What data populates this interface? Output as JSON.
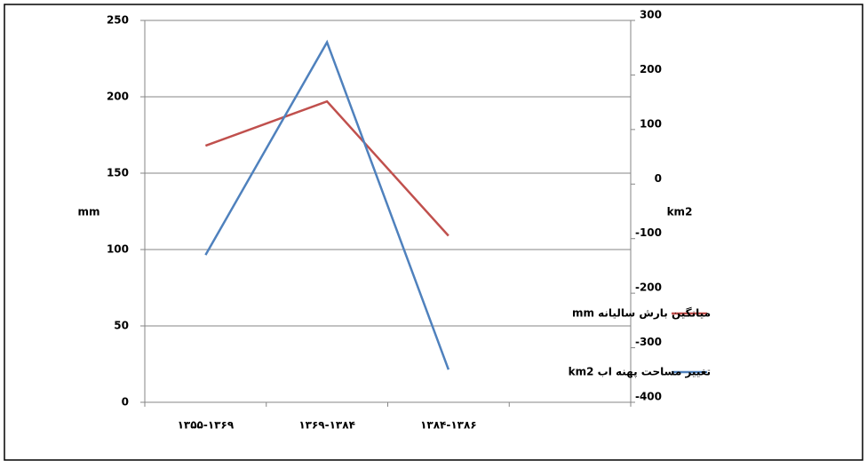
{
  "chart_data": {
    "type": "line",
    "categories": [
      "۱۳۵۵-۱۳۶۹",
      "۱۳۶۹-۱۳۸۴",
      "۱۳۸۴-۱۳۸۶",
      null
    ],
    "series": [
      {
        "name": "میانگین بارش سالیانه mm",
        "color": "#c0504d",
        "values": [
          168,
          197,
          109,
          null
        ]
      },
      {
        "name": "تغییر مساحت پهنه اب km2",
        "color": "#4f81bd",
        "axis": "y2",
        "values": [
          -130,
          260,
          -340,
          null
        ]
      }
    ],
    "ylabel": "mm",
    "y2label": "km2",
    "ylim": [
      0,
      250
    ],
    "yticks": [
      0,
      50,
      100,
      150,
      200,
      250
    ],
    "y2lim": [
      -400,
      300
    ],
    "y2ticks": [
      -400,
      -300,
      -200,
      -100,
      0,
      100,
      200,
      300
    ],
    "grid": true,
    "legend": "right"
  }
}
